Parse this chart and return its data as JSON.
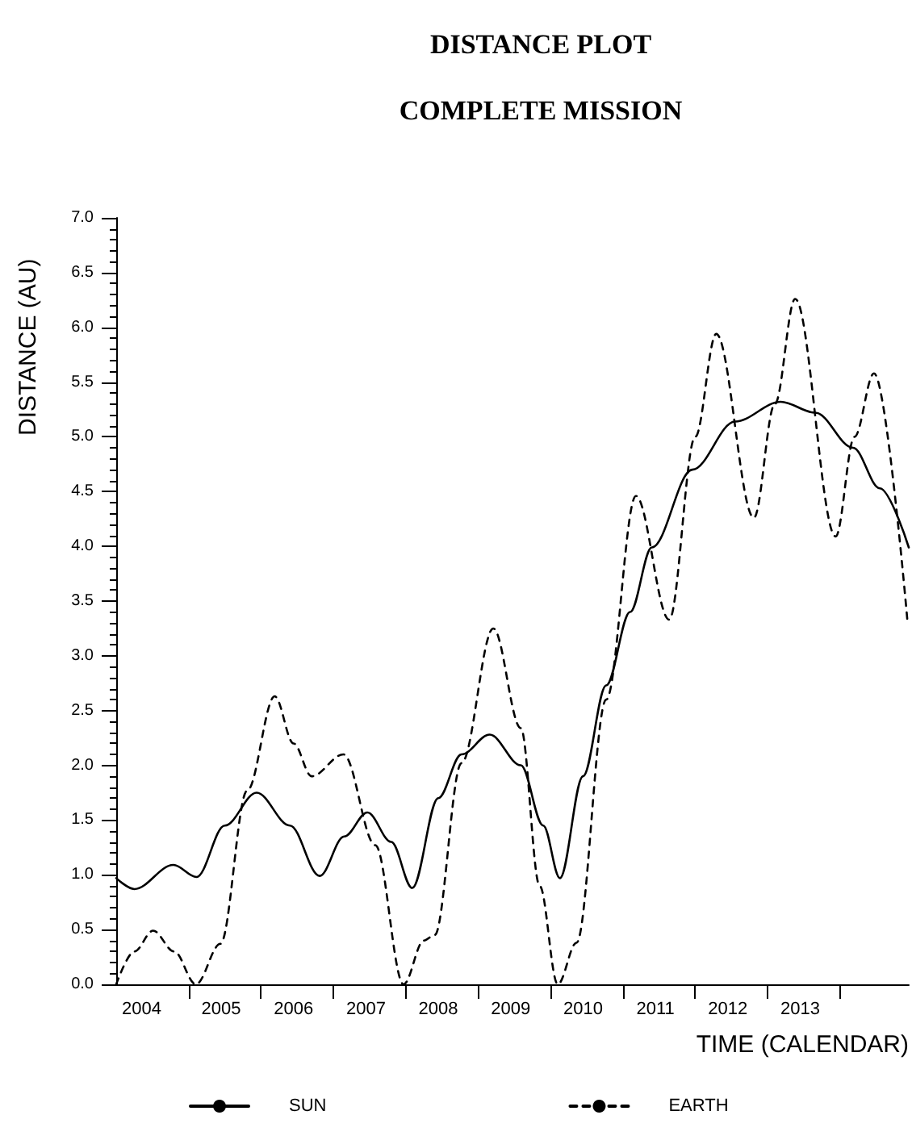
{
  "chart_data": {
    "type": "line",
    "title": "DISTANCE PLOT",
    "subtitle": "COMPLETE MISSION",
    "xlabel": "TIME (CALENDAR)",
    "ylabel": "DISTANCE (AU)",
    "xlim": [
      2004,
      2014.95
    ],
    "ylim": [
      0,
      7
    ],
    "xticks": [
      {
        "value": 2004.35,
        "label": "2004"
      },
      {
        "value": 2005,
        "label": null
      },
      {
        "value": 2005.45,
        "label": "2005"
      },
      {
        "value": 2006,
        "label": null
      },
      {
        "value": 2006.45,
        "label": "2006"
      },
      {
        "value": 2007,
        "label": null
      },
      {
        "value": 2007.45,
        "label": "2007"
      },
      {
        "value": 2008,
        "label": null
      },
      {
        "value": 2008.45,
        "label": "2008"
      },
      {
        "value": 2009,
        "label": null
      },
      {
        "value": 2009.45,
        "label": "2009"
      },
      {
        "value": 2010,
        "label": null
      },
      {
        "value": 2010.45,
        "label": "2010"
      },
      {
        "value": 2011,
        "label": null
      },
      {
        "value": 2011.45,
        "label": "2011"
      },
      {
        "value": 2012,
        "label": null
      },
      {
        "value": 2012.45,
        "label": "2012"
      },
      {
        "value": 2013,
        "label": null
      },
      {
        "value": 2013.45,
        "label": "2013"
      },
      {
        "value": 2014,
        "label": null
      }
    ],
    "yticks": [
      {
        "value": 0,
        "label": "0.0"
      },
      {
        "value": 0.5,
        "label": "0.5"
      },
      {
        "value": 1,
        "label": "1.0"
      },
      {
        "value": 1.5,
        "label": "1.5"
      },
      {
        "value": 2,
        "label": "2.0"
      },
      {
        "value": 2.5,
        "label": "2.5"
      },
      {
        "value": 3,
        "label": "3.0"
      },
      {
        "value": 3.5,
        "label": "3.5"
      },
      {
        "value": 4,
        "label": "4.0"
      },
      {
        "value": 4.5,
        "label": "4.5"
      },
      {
        "value": 5,
        "label": "5.0"
      },
      {
        "value": 5.5,
        "label": "5.5"
      },
      {
        "value": 6,
        "label": "6.0"
      },
      {
        "value": 6.5,
        "label": "6.5"
      },
      {
        "value": 7,
        "label": "7.0"
      }
    ],
    "grid": false,
    "legend": "bottom",
    "marker": "none",
    "series": [
      {
        "name": "SUN",
        "color": "#000000",
        "line_style": "solid",
        "x": [
          2004.0,
          2004.25,
          2004.79,
          2005.11,
          2005.5,
          2005.94,
          2006.4,
          2006.81,
          2007.15,
          2007.47,
          2007.8,
          2008.09,
          2008.45,
          2008.77,
          2009.16,
          2009.59,
          2009.9,
          2010.13,
          2010.45,
          2010.77,
          2011.1,
          2011.4,
          2011.96,
          2012.55,
          2013.18,
          2013.66,
          2014.18,
          2014.55,
          2014.95
        ],
        "values": [
          0.97,
          0.87,
          1.09,
          0.98,
          1.45,
          1.75,
          1.45,
          0.99,
          1.35,
          1.57,
          1.3,
          0.88,
          1.7,
          2.1,
          2.28,
          2.0,
          1.45,
          0.97,
          1.9,
          2.73,
          3.4,
          3.99,
          4.7,
          5.14,
          5.32,
          5.22,
          4.9,
          4.53,
          3.99
        ]
      },
      {
        "name": "EARTH",
        "color": "#000000",
        "line_style": "dashed",
        "x": [
          2004.0,
          2004.25,
          2004.51,
          2004.8,
          2005.1,
          2005.44,
          2005.81,
          2006.19,
          2006.45,
          2006.7,
          2007.14,
          2007.58,
          2007.97,
          2008.25,
          2008.4,
          2008.77,
          2009.21,
          2009.59,
          2009.85,
          2010.1,
          2010.36,
          2010.77,
          2011.18,
          2011.64,
          2012.0,
          2012.29,
          2012.81,
          2013.1,
          2013.38,
          2013.94,
          2014.2,
          2014.47,
          2014.93
        ],
        "values": [
          0.0,
          0.3,
          0.49,
          0.3,
          0.0,
          0.37,
          1.77,
          2.63,
          2.2,
          1.9,
          2.1,
          1.27,
          0.0,
          0.4,
          0.45,
          2.02,
          3.25,
          2.34,
          0.9,
          0.0,
          0.38,
          2.6,
          4.46,
          3.33,
          5.0,
          5.94,
          4.26,
          5.3,
          6.26,
          4.09,
          5.0,
          5.58,
          3.33
        ]
      }
    ]
  }
}
